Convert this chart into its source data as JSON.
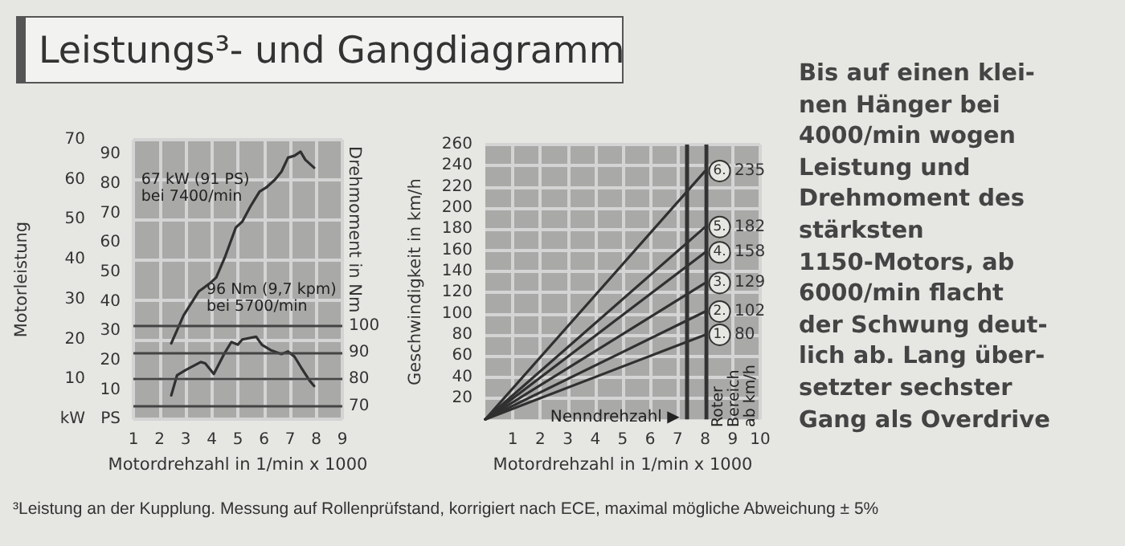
{
  "chart_data": [
    {
      "type": "line",
      "title": "Leistungs³- und Gangdiagramm",
      "xlabel": "Motordrehzahl in 1/min x 1000",
      "ylabel": "Motorleistung",
      "y2label": "Drehmoment in Nm",
      "annotations": [
        "67 kW (91 PS)\nbei 7400/min",
        "96 Nm (9,7 kpm)\nbei 5700/min",
        "³Leistung an der Kupplung. Messung auf Rollenprüfstand, korrigiert nach ECE, maximal mögliche Abweichung ± 5%"
      ],
      "xlim": [
        1,
        9
      ],
      "xticks": [
        1,
        2,
        3,
        4,
        5,
        6,
        7,
        8,
        9
      ],
      "ylim": [
        0,
        70
      ],
      "yticks": [
        {
          "value": 0,
          "label": "kW"
        },
        10,
        20,
        30,
        40,
        50,
        60,
        70
      ],
      "y3lim": [
        0,
        95
      ],
      "y3ticks": [
        {
          "value": 0,
          "label": "PS"
        },
        10,
        20,
        30,
        40,
        50,
        60,
        70,
        80,
        90
      ],
      "y2lim": [
        65,
        170
      ],
      "y2ticks": [
        70,
        80,
        90,
        100
      ],
      "grid": true,
      "series": [
        {
          "color": "#303030",
          "x": [
            2.45,
            2.92,
            3.5,
            3.92,
            4.17,
            4.5,
            4.92,
            5.17,
            5.5,
            5.83,
            6.08,
            6.42,
            6.67,
            6.92,
            7.17,
            7.4,
            7.58,
            7.92
          ],
          "values": [
            19,
            26,
            32,
            34,
            35.5,
            40.5,
            48,
            49.5,
            53.5,
            57,
            58,
            60,
            62,
            65.5,
            66,
            67,
            65,
            63
          ]
        },
        {
          "color": "#303030",
          "axis": "y2",
          "x": [
            2.45,
            2.67,
            3.0,
            3.58,
            3.75,
            4.08,
            4.5,
            4.75,
            5.0,
            5.17,
            5.7,
            5.92,
            6.25,
            6.67,
            6.92,
            7.17,
            7.42,
            7.75,
            7.92
          ],
          "values": [
            74,
            81.5,
            83.5,
            86.5,
            86,
            82,
            90,
            94,
            93,
            95,
            96,
            93,
            91,
            89.5,
            90.5,
            88.5,
            84.5,
            79.5,
            77.5
          ]
        }
      ]
    },
    {
      "type": "line",
      "xlabel": "Motordrehzahl in 1/min x 1000",
      "ylabel": "Geschwindigkeit in km/h",
      "annotations": [
        "Bis auf einen klei-\nnen Hänger bei\n4000/min wogen\nLeistung und\nDrehmoment des\nstärksten\n1150-Motors, ab\n6000/min flacht\nder Schwung deut-\nlich ab. Lang über-\nsetzter sechster\nGang als Overdrive"
      ],
      "xlim": [
        0,
        10
      ],
      "xticks": [
        1,
        2,
        3,
        4,
        5,
        6,
        7,
        8,
        9,
        10
      ],
      "ylim": [
        0,
        260
      ],
      "yticks": [
        20,
        40,
        60,
        80,
        100,
        120,
        140,
        160,
        180,
        200,
        220,
        240,
        260
      ],
      "grid": true,
      "legend": "right",
      "ref_lines": [
        {
          "axis": "x",
          "value": 7.3,
          "label": "Nenndrehzahl ▶"
        },
        {
          "axis": "x",
          "value": 8,
          "label": "Roter\nBereich\nab km/h"
        }
      ],
      "series": [
        {
          "name": "1.",
          "color": "#303030",
          "x": [
            0,
            8
          ],
          "values": [
            0,
            80
          ],
          "value_labels": [
            null,
            "80"
          ]
        },
        {
          "name": "2.",
          "color": "#303030",
          "x": [
            0,
            8
          ],
          "values": [
            0,
            102
          ],
          "value_labels": [
            null,
            "102"
          ]
        },
        {
          "name": "3.",
          "color": "#303030",
          "x": [
            0,
            8
          ],
          "values": [
            0,
            129
          ],
          "value_labels": [
            null,
            "129"
          ]
        },
        {
          "name": "4.",
          "color": "#303030",
          "x": [
            0,
            8
          ],
          "values": [
            0,
            158
          ],
          "value_labels": [
            null,
            "158"
          ]
        },
        {
          "name": "5.",
          "color": "#303030",
          "x": [
            0,
            8
          ],
          "values": [
            0,
            182
          ],
          "value_labels": [
            null,
            "182"
          ]
        },
        {
          "name": "6.",
          "color": "#303030",
          "x": [
            0,
            8
          ],
          "values": [
            0,
            235
          ],
          "value_labels": [
            null,
            "235"
          ]
        }
      ]
    }
  ]
}
